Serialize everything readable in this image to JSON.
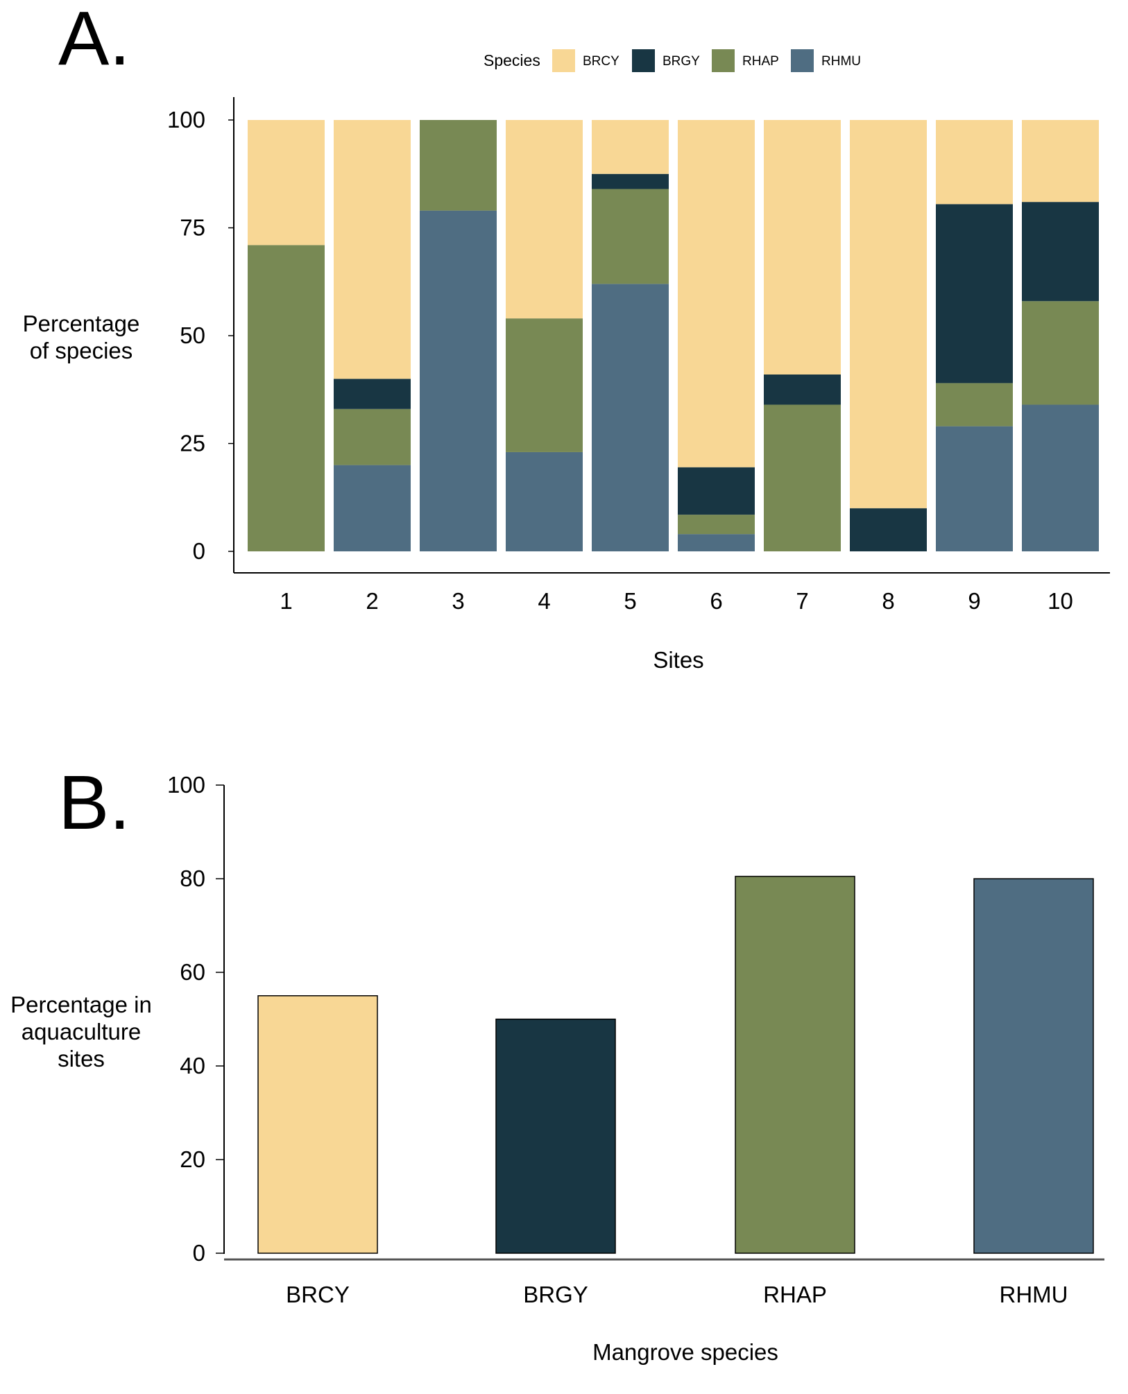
{
  "chart_data": [
    {
      "type": "bar",
      "stacked": true,
      "panel_label": "A.",
      "categories": [
        "1",
        "2",
        "3",
        "4",
        "5",
        "6",
        "7",
        "8",
        "9",
        "10"
      ],
      "series": [
        {
          "name": "RHMU",
          "color": "#4f6d82",
          "values": [
            0,
            20,
            79,
            23,
            62,
            4,
            0,
            0,
            29,
            34
          ]
        },
        {
          "name": "RHAP",
          "color": "#788954",
          "values": [
            71,
            13,
            21,
            31,
            22,
            4.5,
            34,
            0,
            10,
            24
          ]
        },
        {
          "name": "BRGY",
          "color": "#183643",
          "values": [
            0,
            7,
            0,
            0,
            3.5,
            11,
            7,
            10,
            41.5,
            23
          ]
        },
        {
          "name": "BRCY",
          "color": "#f8d795",
          "values": [
            29,
            60,
            0,
            46,
            12.5,
            80.5,
            59,
            90,
            19.5,
            19
          ]
        }
      ],
      "legend_title": "Species",
      "legend_order": [
        "BRCY",
        "BRGY",
        "RHAP",
        "RHMU"
      ],
      "legend_position": "top",
      "xlabel": "Sites",
      "ylabel": [
        "Percentage",
        "of species"
      ],
      "ylim": [
        0,
        100
      ],
      "yticks": [
        "0",
        "25",
        "50",
        "75",
        "100"
      ],
      "grid": false
    },
    {
      "type": "bar",
      "panel_label": "B.",
      "categories": [
        "BRCY",
        "BRGY",
        "RHAP",
        "RHMU"
      ],
      "values": [
        55,
        50,
        80.5,
        80
      ],
      "colors": [
        "#f8d795",
        "#183643",
        "#788954",
        "#4f6d82"
      ],
      "xlabel": "Mangrove species",
      "ylabel": [
        "Percentage in",
        "aquaculture",
        "sites"
      ],
      "ylim": [
        0,
        100
      ],
      "yticks": [
        "0",
        "20",
        "40",
        "60",
        "80",
        "100"
      ],
      "grid": false
    }
  ]
}
